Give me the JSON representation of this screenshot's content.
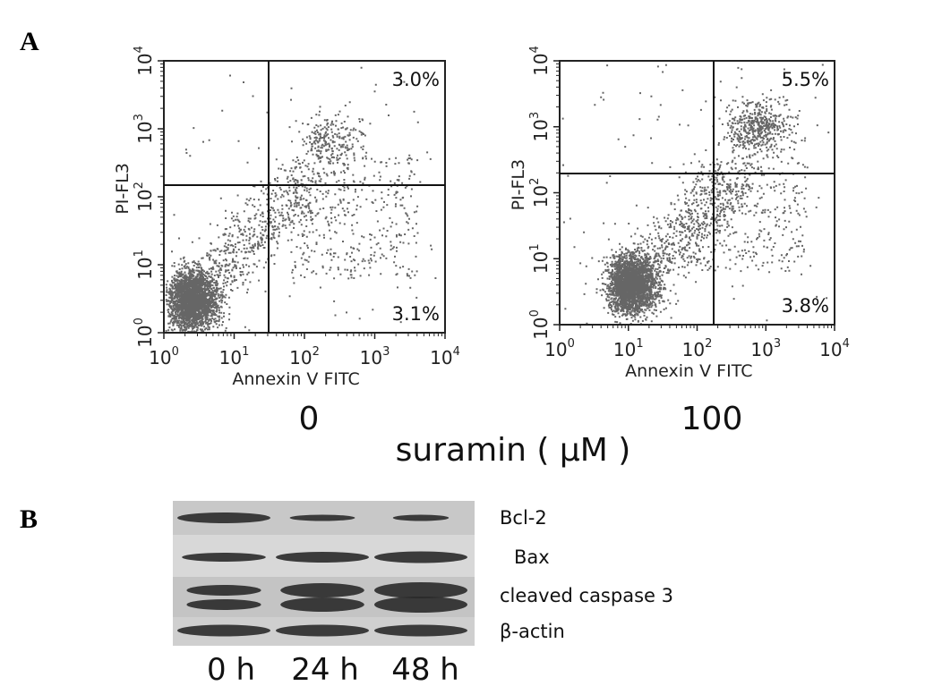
{
  "panel_a": {
    "label": "A",
    "axis_ticks": [
      {
        "base": "10",
        "exp": "0"
      },
      {
        "base": "10",
        "exp": "1"
      },
      {
        "base": "10",
        "exp": "2"
      },
      {
        "base": "10",
        "exp": "3"
      },
      {
        "base": "10",
        "exp": "4"
      }
    ],
    "plots": [
      {
        "y_label": "PI-FL3",
        "x_label": "Annexin V FITC",
        "upper_right": "3.0%",
        "lower_right": "3.1%",
        "condition": "0"
      },
      {
        "y_label": "PI-FL3",
        "x_label": "Annexin V FITC",
        "upper_right": "5.5%",
        "lower_right": "3.8%",
        "condition": "100"
      }
    ],
    "treatment": "suramin ( μM )"
  },
  "panel_b": {
    "label": "B",
    "proteins": [
      "Bcl-2",
      "Bax",
      "cleaved caspase 3",
      "β-actin"
    ],
    "lanes": [
      "0 h",
      "24 h",
      "48 h"
    ]
  }
}
